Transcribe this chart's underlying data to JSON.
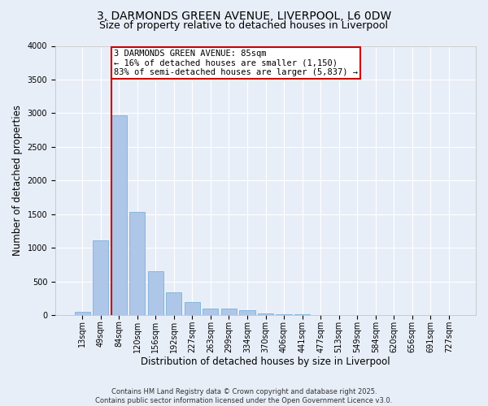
{
  "title_line1": "3, DARMONDS GREEN AVENUE, LIVERPOOL, L6 0DW",
  "title_line2": "Size of property relative to detached houses in Liverpool",
  "xlabel": "Distribution of detached houses by size in Liverpool",
  "ylabel": "Number of detached properties",
  "annotation_line1": "3 DARMONDS GREEN AVENUE: 85sqm",
  "annotation_line2": "← 16% of detached houses are smaller (1,150)",
  "annotation_line3": "83% of semi-detached houses are larger (5,837) →",
  "footnote1": "Contains HM Land Registry data © Crown copyright and database right 2025.",
  "footnote2": "Contains public sector information licensed under the Open Government Licence v3.0.",
  "categories": [
    "13sqm",
    "49sqm",
    "84sqm",
    "120sqm",
    "156sqm",
    "192sqm",
    "227sqm",
    "263sqm",
    "299sqm",
    "334sqm",
    "370sqm",
    "406sqm",
    "441sqm",
    "477sqm",
    "513sqm",
    "549sqm",
    "584sqm",
    "620sqm",
    "656sqm",
    "691sqm",
    "727sqm"
  ],
  "values": [
    55,
    1110,
    2970,
    1530,
    650,
    340,
    200,
    100,
    100,
    70,
    30,
    15,
    10,
    5,
    3,
    2,
    2,
    1,
    1,
    1,
    1
  ],
  "bar_color": "#aec6e8",
  "bar_edge_color": "#6aaad4",
  "vline_color": "#cc0000",
  "annotation_box_edge_color": "#cc0000",
  "ylim": [
    0,
    4000
  ],
  "yticks": [
    0,
    500,
    1000,
    1500,
    2000,
    2500,
    3000,
    3500,
    4000
  ],
  "background_color": "#e8eef8",
  "plot_bg_color": "#e8eef8",
  "grid_color": "#ffffff",
  "title_fontsize": 10,
  "subtitle_fontsize": 9,
  "axis_label_fontsize": 8.5,
  "tick_fontsize": 7,
  "annotation_fontsize": 7.5,
  "footnote_fontsize": 6
}
